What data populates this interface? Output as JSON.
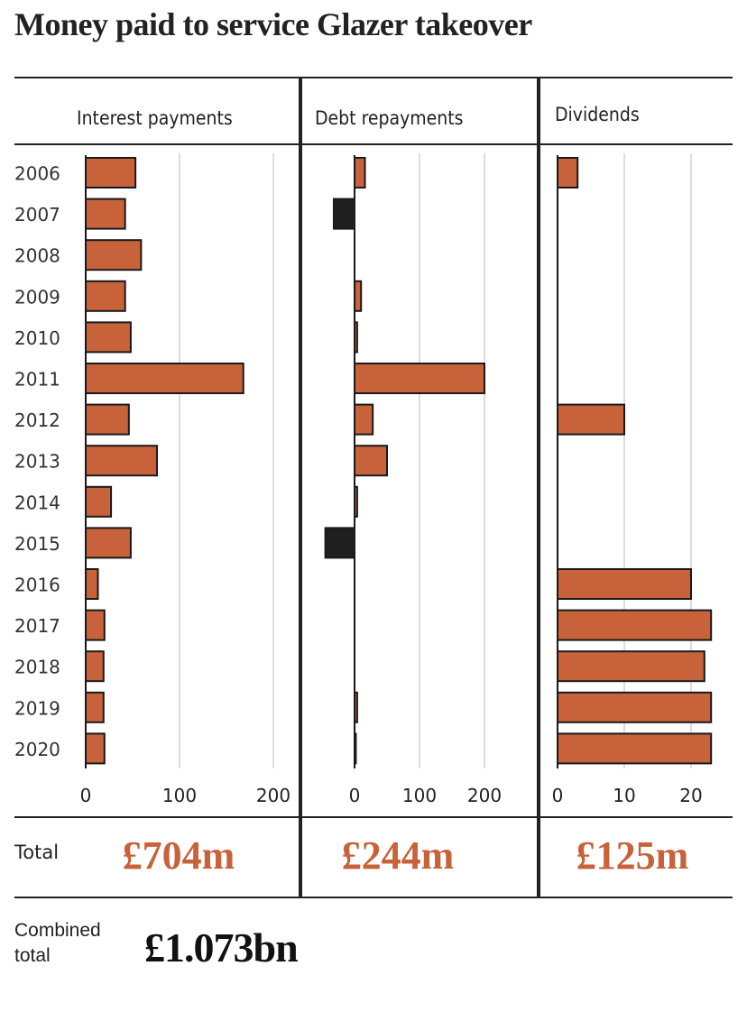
{
  "title": "Money paid to service Glazer takeover",
  "colors": {
    "bar": "#c8623a",
    "negative": "#1f1f1f",
    "total": "#c8623a",
    "grid": "#dddddd"
  },
  "chart_data": [
    {
      "type": "bar",
      "orientation": "horizontal",
      "title": "Interest payments",
      "categories": [
        "2006",
        "2007",
        "2008",
        "2009",
        "2010",
        "2011",
        "2012",
        "2013",
        "2014",
        "2015",
        "2016",
        "2017",
        "2018",
        "2019",
        "2020"
      ],
      "values": [
        53,
        42,
        59,
        42,
        48,
        168,
        46,
        76,
        27,
        48,
        13,
        20,
        19,
        19,
        20
      ],
      "xlim": [
        0,
        220
      ],
      "ticks": [
        0,
        100,
        200
      ],
      "tick_labels": [
        "0",
        "100",
        "200"
      ],
      "total_label": "£704m"
    },
    {
      "type": "bar",
      "orientation": "horizontal",
      "title": "Debt repayments",
      "categories": [
        "2006",
        "2007",
        "2008",
        "2009",
        "2010",
        "2011",
        "2012",
        "2013",
        "2014",
        "2015",
        "2016",
        "2017",
        "2018",
        "2019",
        "2020"
      ],
      "values": [
        16,
        -32,
        0,
        10,
        4,
        200,
        28,
        50,
        4,
        -45,
        0,
        0,
        0,
        4,
        2
      ],
      "xlim": [
        -50,
        220
      ],
      "ticks": [
        0,
        100,
        200
      ],
      "tick_labels": [
        "0",
        "100",
        "200"
      ],
      "total_label": "£244m"
    },
    {
      "type": "bar",
      "orientation": "horizontal",
      "title": "Dividends",
      "categories": [
        "2006",
        "2007",
        "2008",
        "2009",
        "2010",
        "2011",
        "2012",
        "2013",
        "2014",
        "2015",
        "2016",
        "2017",
        "2018",
        "2019",
        "2020"
      ],
      "values": [
        3,
        0,
        0,
        0,
        0,
        0,
        10,
        0,
        0,
        0,
        20,
        23,
        22,
        23,
        23
      ],
      "xlim": [
        0,
        25
      ],
      "ticks": [
        0,
        10,
        20
      ],
      "tick_labels": [
        "0",
        "10",
        "20"
      ],
      "total_label": "£125m"
    }
  ],
  "years": [
    "2006",
    "2007",
    "2008",
    "2009",
    "2010",
    "2011",
    "2012",
    "2013",
    "2014",
    "2015",
    "2016",
    "2017",
    "2018",
    "2019",
    "2020"
  ],
  "total_label": "Total",
  "combined": {
    "line1": "Combined",
    "line2": "total",
    "value": "£1.073bn"
  }
}
